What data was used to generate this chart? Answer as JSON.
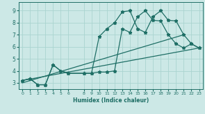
{
  "title": "",
  "xlabel": "Humidex (Indice chaleur)",
  "bg_color": "#cce8e6",
  "grid_color": "#aad4d0",
  "line_color": "#1e6e65",
  "xlim": [
    -0.5,
    23.5
  ],
  "ylim": [
    2.5,
    9.7
  ],
  "xticks": [
    0,
    1,
    2,
    3,
    4,
    5,
    6,
    8,
    9,
    10,
    11,
    12,
    13,
    14,
    15,
    16,
    17,
    18,
    19,
    20,
    21,
    22,
    23
  ],
  "yticks": [
    3,
    4,
    5,
    6,
    7,
    8,
    9
  ],
  "line1_x": [
    0,
    1,
    2,
    3,
    4,
    5,
    6,
    8,
    9,
    10,
    11,
    12,
    13,
    14,
    15,
    16,
    17,
    18,
    19,
    20,
    21,
    22,
    23
  ],
  "line1_y": [
    3.2,
    3.35,
    2.85,
    2.85,
    4.5,
    4.0,
    3.8,
    3.8,
    3.8,
    6.85,
    7.5,
    8.0,
    8.9,
    9.0,
    7.5,
    7.2,
    8.5,
    9.0,
    8.2,
    8.15,
    7.0,
    6.25,
    5.9
  ],
  "line2_x": [
    0,
    1,
    2,
    3,
    4,
    5,
    6,
    8,
    9,
    10,
    11,
    12,
    13,
    14,
    15,
    16,
    17,
    18,
    19,
    20,
    21,
    22,
    23
  ],
  "line2_y": [
    3.2,
    3.35,
    2.85,
    2.85,
    4.5,
    4.0,
    3.8,
    3.8,
    3.8,
    3.9,
    3.9,
    4.0,
    7.5,
    7.2,
    8.5,
    9.0,
    8.2,
    8.15,
    7.0,
    6.25,
    5.9,
    6.25,
    5.9
  ],
  "line3_x": [
    0,
    23
  ],
  "line3_y": [
    3.2,
    5.9
  ],
  "line4_x": [
    0,
    21
  ],
  "line4_y": [
    3.0,
    7.0
  ]
}
